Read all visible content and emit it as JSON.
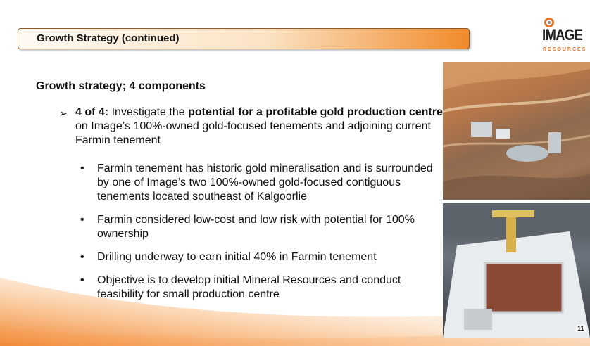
{
  "slide": {
    "title": "Growth Strategy (continued)",
    "heading": "Growth strategy; 4 components",
    "main_point": {
      "marker_icon": "arrow-bullet-icon",
      "lead": "4 of 4:",
      "text_a": " Investigate the ",
      "emphasis": "potential for a profitable gold production centre",
      "text_b": " on Image’s 100%-owned gold-focused tenements and adjoining current Farmin tenement"
    },
    "bullets": [
      "Farmin tenement has historic gold mineralisation and is surrounded by one of Image’s two 100%-owned gold-focused contiguous tenements located southeast of Kalgoorlie",
      "Farmin considered low-cost and low risk with potential for 100% ownership",
      "Drilling underway to earn initial 40% in Farmin tenement",
      "Objective is to develop initial Mineral Resources and conduct feasibility for small production centre"
    ],
    "bullet_glyph": "•",
    "page_number": "11"
  },
  "logo": {
    "name": "IMAGE",
    "sub": "RESOURCES"
  },
  "colors": {
    "accent": "#e8742a",
    "title_border": "#8a5a2a"
  }
}
